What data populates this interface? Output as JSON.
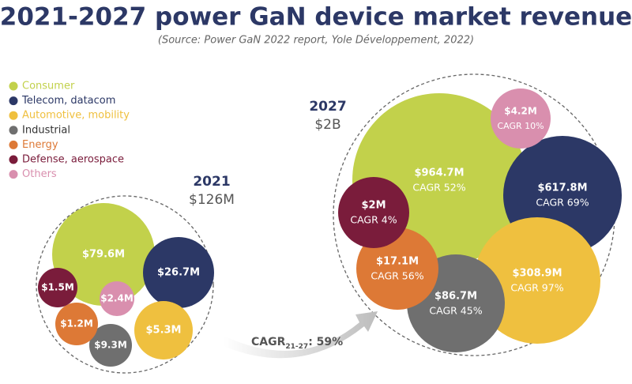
{
  "chart_data": {
    "type": "packed-bubble",
    "title": "2021-2027 power GaN device market revenue",
    "subtitle": "(Source: Power GaN 2022 report, Yole Développement, 2022)",
    "series": [
      {
        "name": "Consumer",
        "color": "#c2d14b"
      },
      {
        "name": "Telecom, datacom",
        "color": "#2c3866"
      },
      {
        "name": "Automotive, mobility",
        "color": "#efc03f"
      },
      {
        "name": "Industrial",
        "color": "#6f6f6f"
      },
      {
        "name": "Energy",
        "color": "#dd7936"
      },
      {
        "name": "Defense, aerospace",
        "color": "#7a1c3b"
      },
      {
        "name": "Others",
        "color": "#d98fae"
      }
    ],
    "groups": [
      {
        "label": "2021",
        "total": 126,
        "total_label": "$126M",
        "values": [
          79.6,
          26.7,
          5.3,
          9.3,
          1.2,
          1.5,
          2.4
        ],
        "value_labels": [
          "$79.6M",
          "$26.7M",
          "$5.3M",
          "$9.3M",
          "$1.2M",
          "$1.5M",
          "$2.4M"
        ]
      },
      {
        "label": "2027",
        "total": 2000,
        "total_label": "$2B",
        "values": [
          964.7,
          617.8,
          308.9,
          86.7,
          17.1,
          2,
          4.2
        ],
        "value_labels": [
          "$964.7M",
          "$617.8M",
          "$308.9M",
          "$86.7M",
          "$17.1M",
          "$2M",
          "$4.2M"
        ],
        "cagr": [
          52,
          69,
          97,
          45,
          56,
          4,
          10
        ],
        "cagr_labels": [
          "CAGR 52%",
          "CAGR 69%",
          "CAGR 97%",
          "CAGR 45%",
          "CAGR 56%",
          "CAGR 4%",
          "CAGR 10%"
        ]
      }
    ],
    "annotation": {
      "text": "CAGR",
      "subscript": "21-27",
      "suffix": ": 59%"
    }
  }
}
